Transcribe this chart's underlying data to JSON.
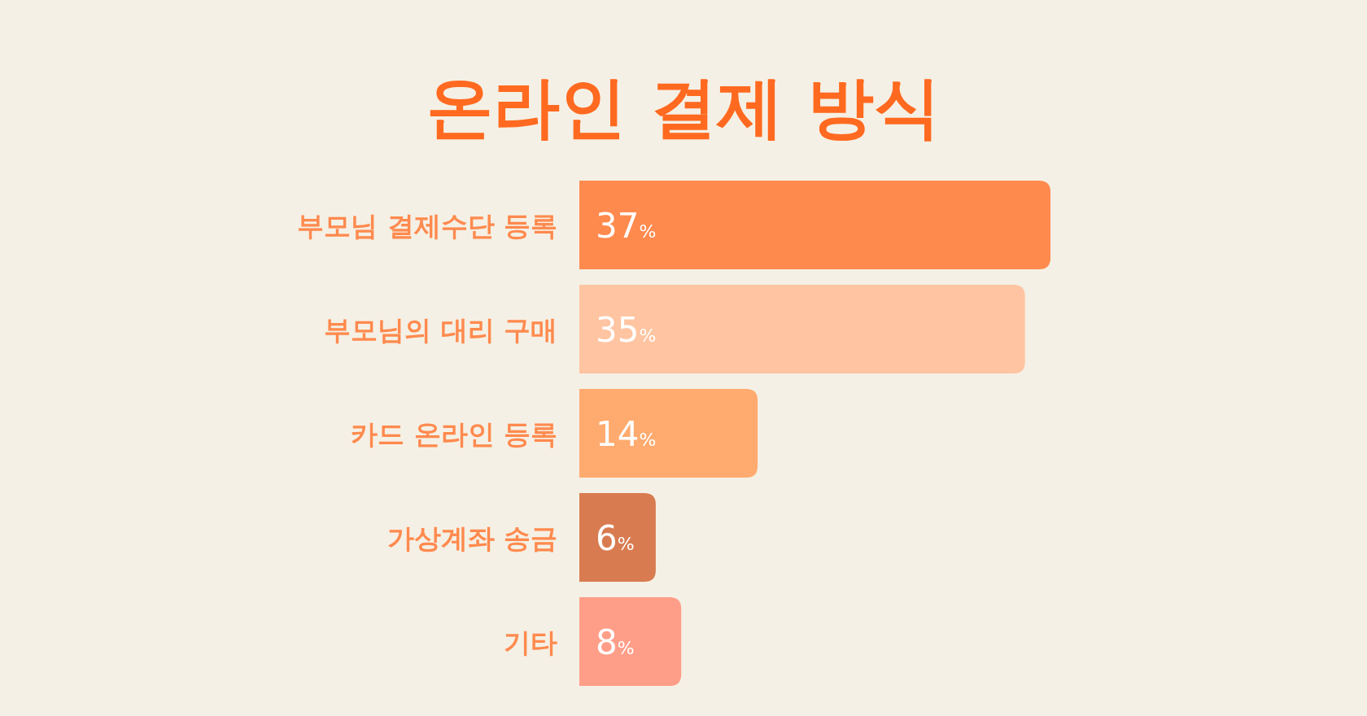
{
  "chart_data": {
    "type": "bar",
    "orientation": "horizontal",
    "title": "온라인 결제 방식",
    "categories": [
      "부모님 결제수단 등록",
      "부모님의 대리 구매",
      "카드 온라인 등록",
      "가상계좌 송금",
      "기타"
    ],
    "values": [
      37,
      35,
      14,
      6,
      8
    ],
    "colors": [
      "#ff8a4e",
      "#ffc4a1",
      "#ffab6f",
      "#d97b50",
      "#ff9e88"
    ],
    "value_labels": [
      "37%",
      "35%",
      "14%",
      "6%",
      "8%"
    ]
  }
}
